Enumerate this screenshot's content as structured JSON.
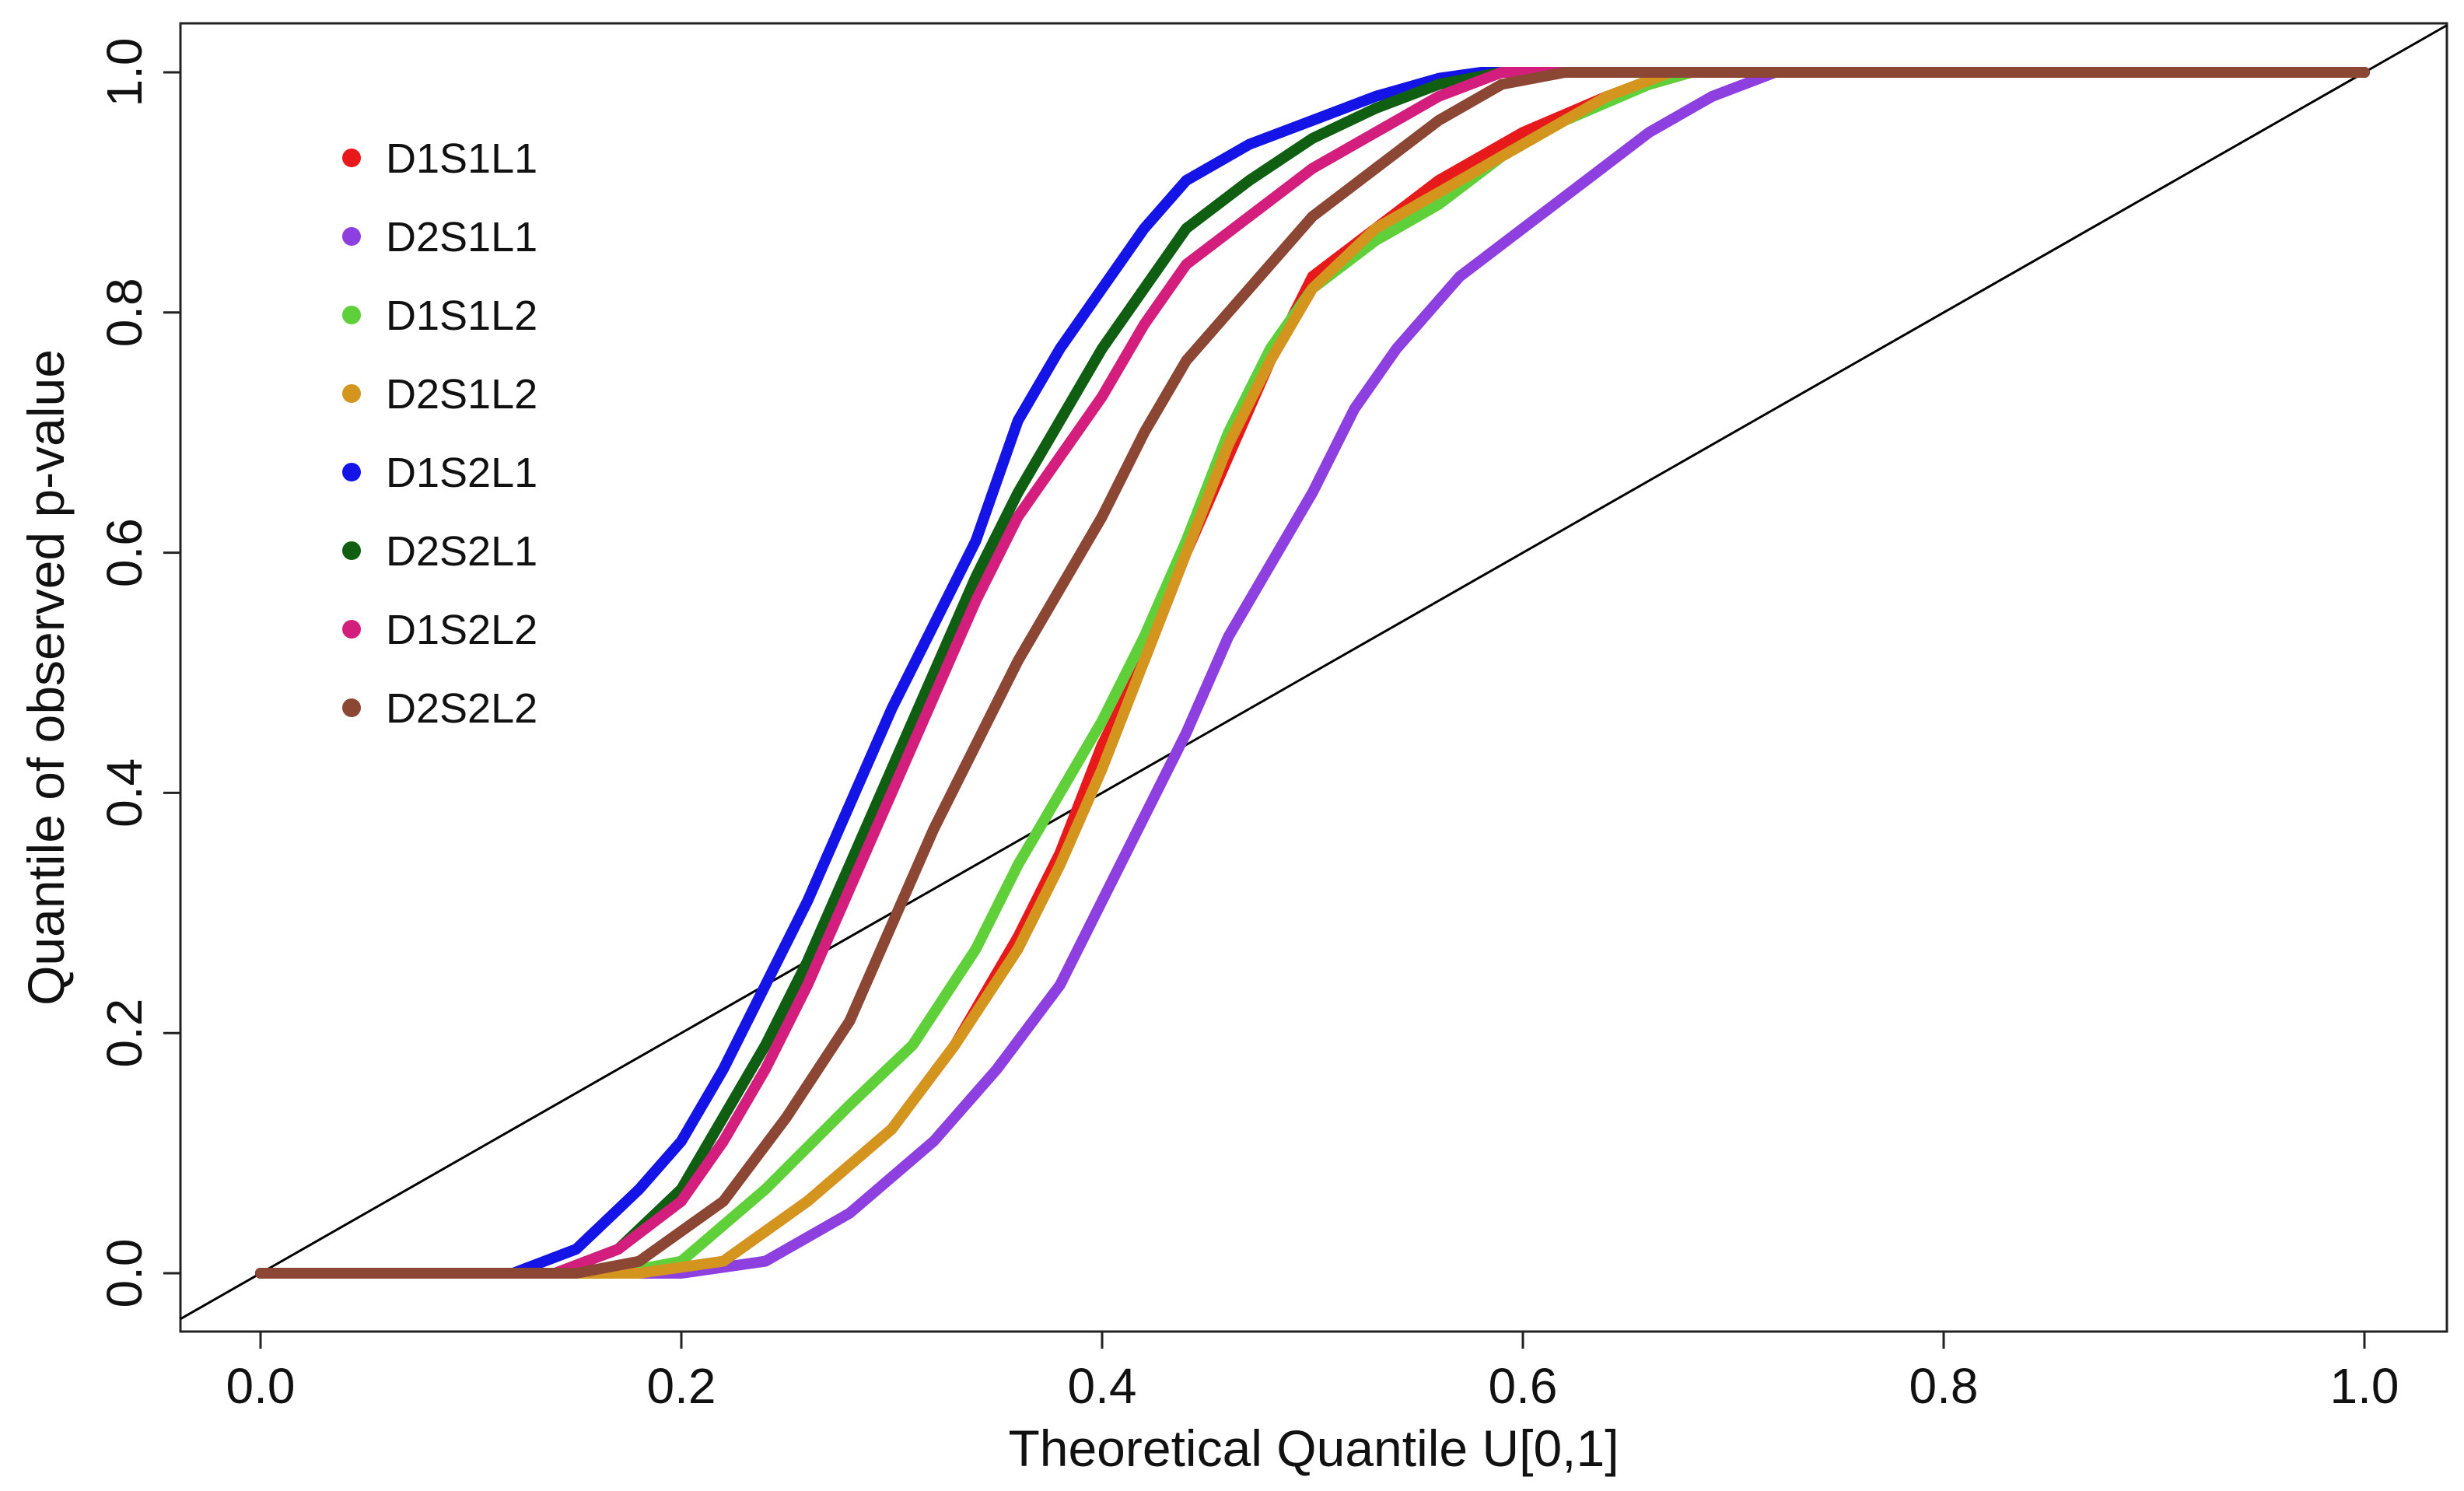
{
  "chart_data": {
    "type": "line",
    "title": "",
    "xlabel": "Theoretical Quantile U[0,1]",
    "ylabel": "Quantile of observed p-value",
    "xlim": [
      0,
      1
    ],
    "ylim": [
      0,
      1
    ],
    "x_ticks": [
      "0.0",
      "0.2",
      "0.4",
      "0.6",
      "0.8",
      "1.0"
    ],
    "y_ticks": [
      "0.0",
      "0.2",
      "0.4",
      "0.6",
      "0.8",
      "1.0"
    ],
    "legend_position": "top-left",
    "reference_line": {
      "name": "y = x",
      "color": "#000000"
    },
    "series": [
      {
        "name": "D1S1L1",
        "color": "#e8191b",
        "points": [
          [
            0,
            0
          ],
          [
            0.19,
            0
          ],
          [
            0.22,
            0.01
          ],
          [
            0.26,
            0.06
          ],
          [
            0.3,
            0.12
          ],
          [
            0.33,
            0.19
          ],
          [
            0.36,
            0.28
          ],
          [
            0.38,
            0.35
          ],
          [
            0.4,
            0.44
          ],
          [
            0.42,
            0.51
          ],
          [
            0.44,
            0.6
          ],
          [
            0.46,
            0.68
          ],
          [
            0.48,
            0.76
          ],
          [
            0.5,
            0.83
          ],
          [
            0.53,
            0.87
          ],
          [
            0.56,
            0.91
          ],
          [
            0.6,
            0.95
          ],
          [
            0.64,
            0.98
          ],
          [
            0.68,
            1.0
          ],
          [
            1.0,
            1.0
          ]
        ]
      },
      {
        "name": "D2S1L1",
        "color": "#8e3fe0",
        "points": [
          [
            0,
            0
          ],
          [
            0.2,
            0
          ],
          [
            0.24,
            0.01
          ],
          [
            0.28,
            0.05
          ],
          [
            0.32,
            0.11
          ],
          [
            0.35,
            0.17
          ],
          [
            0.38,
            0.24
          ],
          [
            0.4,
            0.31
          ],
          [
            0.42,
            0.38
          ],
          [
            0.44,
            0.45
          ],
          [
            0.46,
            0.53
          ],
          [
            0.48,
            0.59
          ],
          [
            0.5,
            0.65
          ],
          [
            0.52,
            0.72
          ],
          [
            0.54,
            0.77
          ],
          [
            0.57,
            0.83
          ],
          [
            0.6,
            0.87
          ],
          [
            0.63,
            0.91
          ],
          [
            0.66,
            0.95
          ],
          [
            0.69,
            0.98
          ],
          [
            0.72,
            1.0
          ],
          [
            1.0,
            1.0
          ]
        ]
      },
      {
        "name": "D1S1L2",
        "color": "#5fd03a",
        "points": [
          [
            0,
            0
          ],
          [
            0.17,
            0
          ],
          [
            0.2,
            0.01
          ],
          [
            0.24,
            0.07
          ],
          [
            0.28,
            0.14
          ],
          [
            0.31,
            0.19
          ],
          [
            0.34,
            0.27
          ],
          [
            0.36,
            0.34
          ],
          [
            0.38,
            0.4
          ],
          [
            0.4,
            0.46
          ],
          [
            0.42,
            0.53
          ],
          [
            0.44,
            0.61
          ],
          [
            0.46,
            0.7
          ],
          [
            0.48,
            0.77
          ],
          [
            0.5,
            0.82
          ],
          [
            0.53,
            0.86
          ],
          [
            0.56,
            0.89
          ],
          [
            0.59,
            0.93
          ],
          [
            0.62,
            0.96
          ],
          [
            0.66,
            0.99
          ],
          [
            0.68,
            1.0
          ],
          [
            1.0,
            1.0
          ]
        ]
      },
      {
        "name": "D2S1L2",
        "color": "#d4951e",
        "points": [
          [
            0,
            0
          ],
          [
            0.18,
            0
          ],
          [
            0.22,
            0.01
          ],
          [
            0.26,
            0.06
          ],
          [
            0.3,
            0.12
          ],
          [
            0.33,
            0.19
          ],
          [
            0.36,
            0.27
          ],
          [
            0.38,
            0.34
          ],
          [
            0.4,
            0.42
          ],
          [
            0.42,
            0.51
          ],
          [
            0.44,
            0.6
          ],
          [
            0.46,
            0.69
          ],
          [
            0.48,
            0.76
          ],
          [
            0.5,
            0.82
          ],
          [
            0.53,
            0.87
          ],
          [
            0.56,
            0.9
          ],
          [
            0.6,
            0.94
          ],
          [
            0.64,
            0.98
          ],
          [
            0.67,
            1.0
          ],
          [
            1.0,
            1.0
          ]
        ]
      },
      {
        "name": "D1S2L1",
        "color": "#1414e6",
        "points": [
          [
            0,
            0
          ],
          [
            0.12,
            0
          ],
          [
            0.15,
            0.02
          ],
          [
            0.18,
            0.07
          ],
          [
            0.2,
            0.11
          ],
          [
            0.22,
            0.17
          ],
          [
            0.24,
            0.24
          ],
          [
            0.26,
            0.31
          ],
          [
            0.28,
            0.39
          ],
          [
            0.3,
            0.47
          ],
          [
            0.32,
            0.54
          ],
          [
            0.34,
            0.61
          ],
          [
            0.36,
            0.71
          ],
          [
            0.38,
            0.77
          ],
          [
            0.4,
            0.82
          ],
          [
            0.42,
            0.87
          ],
          [
            0.44,
            0.91
          ],
          [
            0.47,
            0.94
          ],
          [
            0.5,
            0.96
          ],
          [
            0.53,
            0.98
          ],
          [
            0.56,
            0.995
          ],
          [
            0.58,
            1.0
          ],
          [
            1.0,
            1.0
          ]
        ]
      },
      {
        "name": "D2S2L1",
        "color": "#0f5e12",
        "points": [
          [
            0,
            0
          ],
          [
            0.14,
            0
          ],
          [
            0.17,
            0.02
          ],
          [
            0.2,
            0.07
          ],
          [
            0.22,
            0.13
          ],
          [
            0.24,
            0.19
          ],
          [
            0.26,
            0.26
          ],
          [
            0.28,
            0.34
          ],
          [
            0.3,
            0.42
          ],
          [
            0.32,
            0.5
          ],
          [
            0.34,
            0.58
          ],
          [
            0.36,
            0.65
          ],
          [
            0.38,
            0.71
          ],
          [
            0.4,
            0.77
          ],
          [
            0.42,
            0.82
          ],
          [
            0.44,
            0.87
          ],
          [
            0.47,
            0.91
          ],
          [
            0.5,
            0.945
          ],
          [
            0.53,
            0.97
          ],
          [
            0.56,
            0.99
          ],
          [
            0.59,
            1.0
          ],
          [
            1.0,
            1.0
          ]
        ]
      },
      {
        "name": "D1S2L2",
        "color": "#d41e7e",
        "points": [
          [
            0,
            0
          ],
          [
            0.14,
            0
          ],
          [
            0.17,
            0.02
          ],
          [
            0.2,
            0.06
          ],
          [
            0.22,
            0.11
          ],
          [
            0.24,
            0.17
          ],
          [
            0.26,
            0.24
          ],
          [
            0.28,
            0.32
          ],
          [
            0.3,
            0.4
          ],
          [
            0.32,
            0.48
          ],
          [
            0.34,
            0.56
          ],
          [
            0.36,
            0.63
          ],
          [
            0.38,
            0.68
          ],
          [
            0.4,
            0.73
          ],
          [
            0.42,
            0.79
          ],
          [
            0.44,
            0.84
          ],
          [
            0.47,
            0.88
          ],
          [
            0.5,
            0.92
          ],
          [
            0.53,
            0.95
          ],
          [
            0.56,
            0.98
          ],
          [
            0.59,
            1.0
          ],
          [
            1.0,
            1.0
          ]
        ]
      },
      {
        "name": "D2S2L2",
        "color": "#8b4734",
        "points": [
          [
            0,
            0
          ],
          [
            0.15,
            0
          ],
          [
            0.18,
            0.01
          ],
          [
            0.22,
            0.06
          ],
          [
            0.25,
            0.13
          ],
          [
            0.28,
            0.21
          ],
          [
            0.3,
            0.29
          ],
          [
            0.32,
            0.37
          ],
          [
            0.34,
            0.44
          ],
          [
            0.36,
            0.51
          ],
          [
            0.38,
            0.57
          ],
          [
            0.4,
            0.63
          ],
          [
            0.42,
            0.7
          ],
          [
            0.44,
            0.76
          ],
          [
            0.46,
            0.8
          ],
          [
            0.48,
            0.84
          ],
          [
            0.5,
            0.88
          ],
          [
            0.53,
            0.92
          ],
          [
            0.56,
            0.96
          ],
          [
            0.59,
            0.99
          ],
          [
            0.62,
            1.0
          ],
          [
            1.0,
            1.0
          ]
        ]
      }
    ]
  }
}
